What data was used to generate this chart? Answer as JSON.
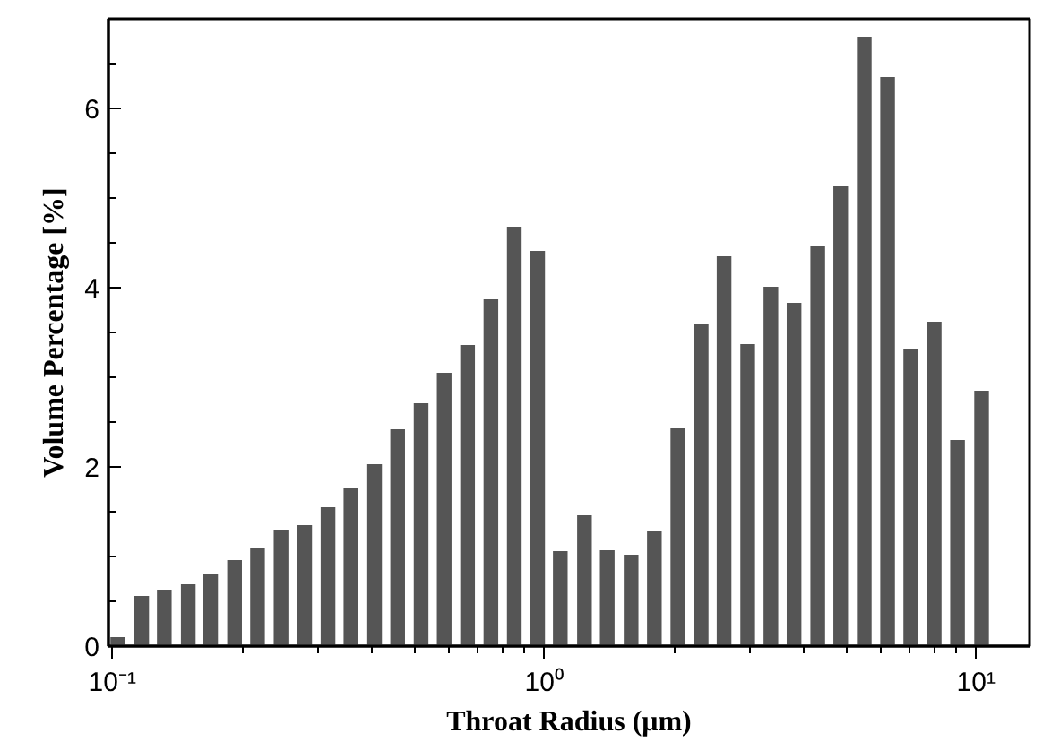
{
  "chart_data": {
    "type": "bar",
    "xlabel": "Throat Radius (μm)",
    "ylabel": "Volume Percentage [%]",
    "x": [
      0.103,
      0.117,
      0.132,
      0.15,
      0.169,
      0.192,
      0.217,
      0.246,
      0.279,
      0.316,
      0.357,
      0.405,
      0.458,
      0.519,
      0.587,
      0.665,
      0.753,
      0.853,
      0.966,
      1.09,
      1.24,
      1.4,
      1.59,
      1.8,
      2.04,
      2.31,
      2.61,
      2.96,
      3.35,
      3.79,
      4.3,
      4.86,
      5.51,
      6.24,
      7.06,
      8.0,
      9.06,
      10.3
    ],
    "values": [
      0.1,
      0.56,
      0.63,
      0.69,
      0.8,
      0.96,
      1.1,
      1.3,
      1.35,
      1.55,
      1.76,
      2.03,
      2.42,
      2.71,
      3.05,
      3.36,
      3.87,
      4.68,
      4.41,
      1.06,
      1.46,
      1.07,
      1.02,
      1.29,
      2.43,
      3.6,
      4.35,
      3.37,
      4.01,
      3.83,
      4.47,
      5.13,
      6.8,
      6.35,
      3.32,
      3.62,
      2.3,
      2.85
    ],
    "color": "#555555",
    "log": "x",
    "grid": false,
    "xlim": [
      0.098,
      13.3
    ],
    "ylim": [
      0,
      7
    ],
    "xticks": [
      {
        "value": 0.1,
        "label": "10⁻¹"
      },
      {
        "value": 0.2,
        "label": null
      },
      {
        "value": 0.3,
        "label": null
      },
      {
        "value": 0.4,
        "label": null
      },
      {
        "value": 0.5,
        "label": null
      },
      {
        "value": 0.6,
        "label": null
      },
      {
        "value": 0.7,
        "label": null
      },
      {
        "value": 0.8,
        "label": null
      },
      {
        "value": 0.9,
        "label": null
      },
      {
        "value": 1,
        "label": "10⁰"
      },
      {
        "value": 2,
        "label": null
      },
      {
        "value": 3,
        "label": null
      },
      {
        "value": 4,
        "label": null
      },
      {
        "value": 5,
        "label": null
      },
      {
        "value": 6,
        "label": null
      },
      {
        "value": 7,
        "label": null
      },
      {
        "value": 8,
        "label": null
      },
      {
        "value": 9,
        "label": null
      },
      {
        "value": 10,
        "label": "10¹"
      }
    ],
    "yticks": [
      0,
      {
        "value": 0.5,
        "label": null
      },
      {
        "value": 1,
        "label": null
      },
      {
        "value": 1.5,
        "label": null
      },
      2,
      {
        "value": 2.5,
        "label": null
      },
      {
        "value": 3,
        "label": null
      },
      {
        "value": 3.5,
        "label": null
      },
      4,
      {
        "value": 4.5,
        "label": null
      },
      {
        "value": 5,
        "label": null
      },
      {
        "value": 5.5,
        "label": null
      },
      6,
      {
        "value": 6.5,
        "label": null
      }
    ]
  }
}
